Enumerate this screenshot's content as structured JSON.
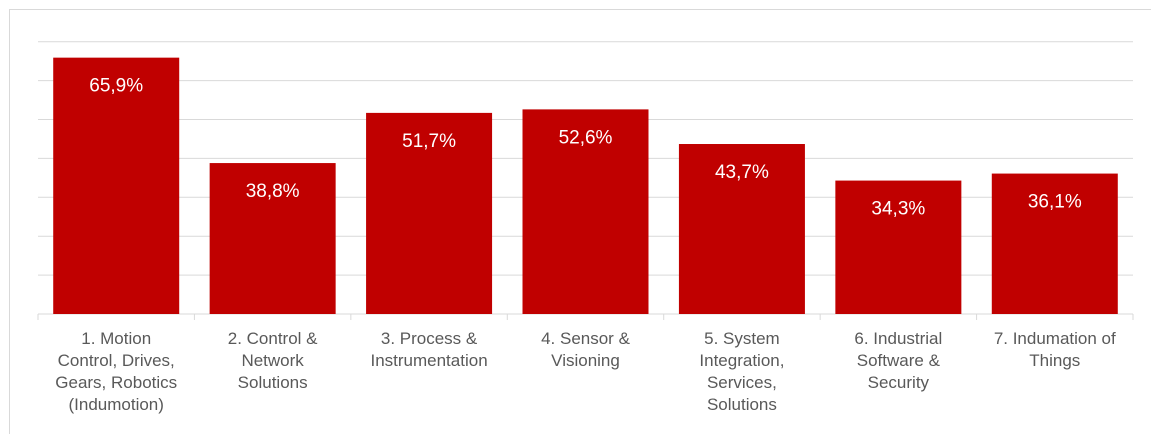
{
  "chart_data": {
    "type": "bar",
    "categories": [
      "1. Motion Control, Drives, Gears, Robotics (Indumotion)",
      "2. Control & Network Solutions",
      "3. Process & Instrumentation",
      "4. Sensor & Visioning",
      "5. System Integration, Services, Solutions",
      "6. Industrial Software & Security",
      "7. Indumation of Things"
    ],
    "category_label_lines": [
      [
        "1. Motion",
        "Control, Drives,",
        "Gears, Robotics",
        "(Indumotion)"
      ],
      [
        "2. Control &",
        "Network",
        "Solutions"
      ],
      [
        "3. Process &",
        "Instrumentation"
      ],
      [
        "4. Sensor &",
        "Visioning"
      ],
      [
        "5. System",
        "Integration,",
        "Services,",
        "Solutions"
      ],
      [
        "6. Industrial",
        "Software &",
        "Security"
      ],
      [
        "7. Indumation of",
        "Things"
      ]
    ],
    "values": [
      65.9,
      38.8,
      51.7,
      52.6,
      43.7,
      34.3,
      36.1
    ],
    "value_labels": [
      "65,9%",
      "38,8%",
      "51,7%",
      "52,6%",
      "43,7%",
      "34,3%",
      "36,1%"
    ],
    "ylim": [
      0,
      70
    ],
    "grid": true,
    "bar_color": "#c00000",
    "grid_color": "#d9d9d9",
    "label_color": "#595959",
    "title": "",
    "xlabel": "",
    "ylabel": ""
  }
}
